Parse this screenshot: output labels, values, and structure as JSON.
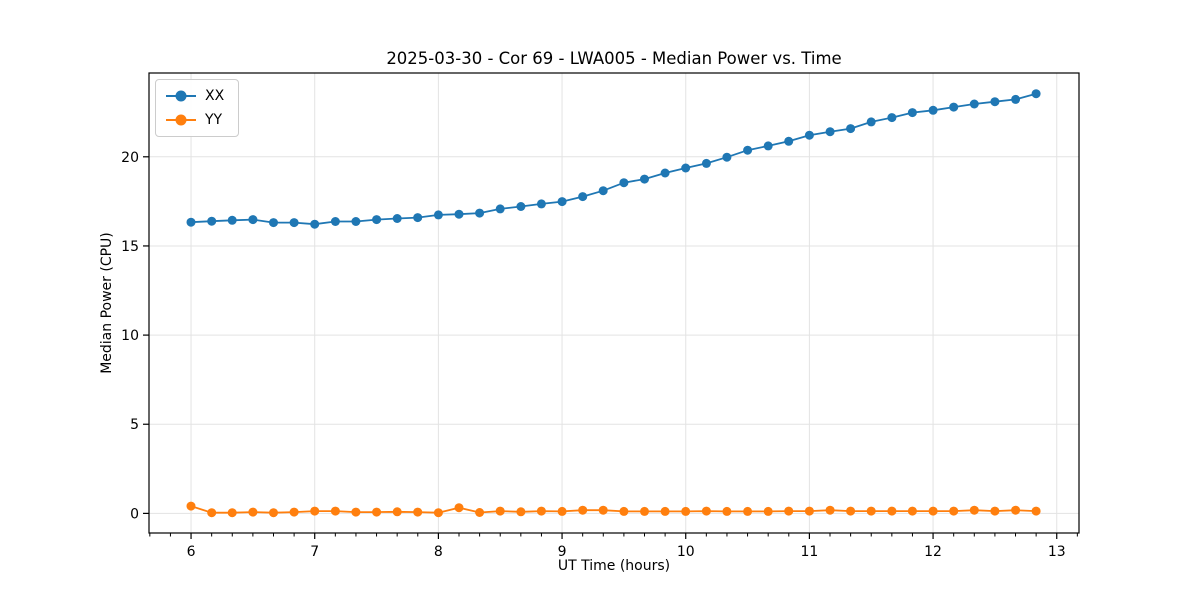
{
  "chart_data": {
    "type": "line",
    "title": "2025-03-30 - Cor 69 - LWA005 - Median Power vs. Time",
    "xlabel": "UT Time (hours)",
    "ylabel": "Median Power (CPU)",
    "xlim": [
      5.66,
      13.18
    ],
    "ylim": [
      -1.1,
      24.7
    ],
    "x_major_ticks": [
      6,
      7,
      8,
      9,
      10,
      11,
      12,
      13
    ],
    "x_minor_step": 0.1667,
    "y_major_ticks": [
      0,
      5,
      10,
      15,
      20
    ],
    "grid": true,
    "legend_position": "upper left",
    "x": [
      6.0,
      6.167,
      6.333,
      6.5,
      6.667,
      6.833,
      7.0,
      7.167,
      7.333,
      7.5,
      7.667,
      7.833,
      8.0,
      8.167,
      8.333,
      8.5,
      8.667,
      8.833,
      9.0,
      9.167,
      9.333,
      9.5,
      9.667,
      9.833,
      10.0,
      10.167,
      10.333,
      10.5,
      10.667,
      10.833,
      11.0,
      11.167,
      11.333,
      11.5,
      11.667,
      11.833,
      12.0,
      12.167,
      12.333,
      12.5,
      12.667,
      12.833
    ],
    "series": [
      {
        "name": "XX",
        "color": "#1f77b4",
        "values": [
          16.33,
          16.39,
          16.44,
          16.48,
          16.31,
          16.31,
          16.22,
          16.37,
          16.37,
          16.48,
          16.54,
          16.59,
          16.74,
          16.78,
          16.84,
          17.08,
          17.21,
          17.36,
          17.49,
          17.77,
          18.1,
          18.55,
          18.75,
          19.09,
          19.37,
          19.63,
          19.98,
          20.37,
          20.61,
          20.87,
          21.21,
          21.41,
          21.58,
          21.96,
          22.2,
          22.48,
          22.61,
          22.79,
          22.96,
          23.09,
          23.22,
          23.54
        ]
      },
      {
        "name": "YY",
        "color": "#ff7f0e",
        "values": [
          0.41,
          0.04,
          0.04,
          0.07,
          0.04,
          0.07,
          0.13,
          0.13,
          0.07,
          0.07,
          0.09,
          0.07,
          0.04,
          0.32,
          0.05,
          0.13,
          0.09,
          0.13,
          0.11,
          0.18,
          0.18,
          0.11,
          0.11,
          0.11,
          0.11,
          0.13,
          0.11,
          0.11,
          0.11,
          0.13,
          0.13,
          0.18,
          0.13,
          0.13,
          0.13,
          0.13,
          0.13,
          0.13,
          0.18,
          0.13,
          0.18,
          0.13
        ]
      }
    ]
  },
  "style": {
    "grid_color": "#e3e3e3",
    "spine_color": "#000000",
    "background": "#ffffff"
  }
}
